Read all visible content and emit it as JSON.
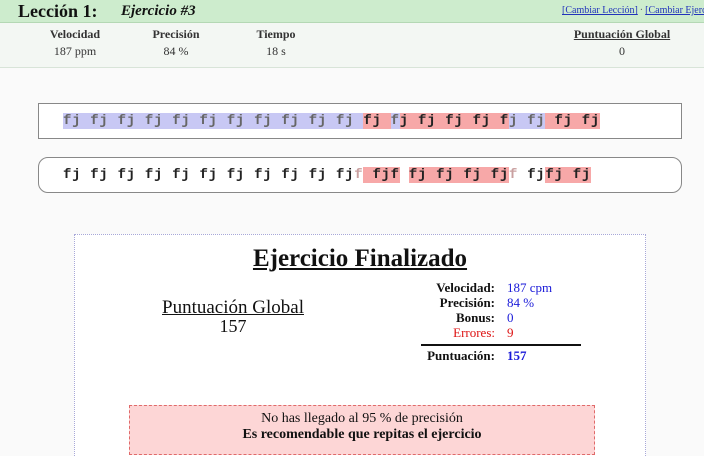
{
  "header": {
    "lesson": "Lección 1:",
    "exercise": "Ejercicio #3",
    "link_change_lesson": "[Cambiar Lección]",
    "link_separator": "·",
    "link_change_exercise": "[Cambiar Ejercicio]"
  },
  "stats": {
    "speed_label": "Velocidad",
    "speed_value": "187 ppm",
    "accuracy_label": "Precisión",
    "accuracy_value": "84 %",
    "time_label": "Tiempo",
    "time_value": "18 s",
    "global_label": "Puntuación Global",
    "global_value": "0"
  },
  "typing": {
    "target_segments": [
      {
        "t": "fj fj fj fj fj fj fj fj fj fj fj ",
        "s": "ok"
      },
      {
        "t": "fj ",
        "s": "bad"
      },
      {
        "t": "f",
        "s": "ok"
      },
      {
        "t": "j fj fj fj f",
        "s": "bad"
      },
      {
        "t": "j ",
        "s": "ok"
      },
      {
        "t": "fj",
        "s": "ok"
      },
      {
        "t": " fj fj",
        "s": "bad"
      }
    ],
    "typed_segments": [
      {
        "t": "fj fj fj fj fj fj fj fj fj fj fj",
        "s": "pend"
      },
      {
        "t": "f",
        "s": "ghost"
      },
      {
        "t": " fjf",
        "s": "bad"
      },
      {
        "t": " ",
        "s": "pend"
      },
      {
        "t": "fj fj fj fj",
        "s": "bad"
      },
      {
        "t": "f",
        "s": "ghost"
      },
      {
        "t": " fj",
        "s": "pend"
      },
      {
        "t": "fj fj",
        "s": "bad"
      }
    ]
  },
  "result": {
    "title": "Ejercicio Finalizado",
    "global_label": "Puntuación Global",
    "global_value": "157",
    "speed_label": "Velocidad:",
    "speed_value": "187 cpm",
    "accuracy_label": "Precisión:",
    "accuracy_value": "84 %",
    "bonus_label": "Bonus:",
    "bonus_value": "0",
    "errors_label": "Errores:",
    "errors_value": "9",
    "score_label": "Puntuación:",
    "score_value": "157",
    "warning_line1": "No has llegado al 95 % de precisión",
    "warning_line2": "Es recomendable que repitas el ejercicio"
  },
  "colors": {
    "correct_bg": "#c8c8f4",
    "error_bg": "#f7a8a8",
    "header_bg": "#cdeccd",
    "value_blue": "#1a1ad8",
    "error_red": "#d11111"
  }
}
